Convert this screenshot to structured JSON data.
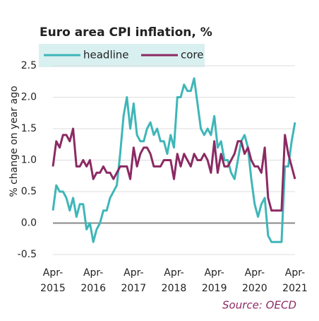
{
  "chart_data": {
    "type": "line",
    "title": "Euro area CPI inflation, %",
    "y_label": "% change on year ago",
    "source": "Source:  OECD",
    "categories": [
      "Apr-2015",
      null,
      null,
      null,
      null,
      null,
      null,
      null,
      null,
      null,
      null,
      null,
      "Apr-2016",
      null,
      null,
      null,
      null,
      null,
      null,
      null,
      null,
      null,
      null,
      null,
      "Apr-2017",
      null,
      null,
      null,
      null,
      null,
      null,
      null,
      null,
      null,
      null,
      null,
      "Apr-2018",
      null,
      null,
      null,
      null,
      null,
      null,
      null,
      null,
      null,
      null,
      null,
      "Apr-2019",
      null,
      null,
      null,
      null,
      null,
      null,
      null,
      null,
      null,
      null,
      null,
      "Apr-2020",
      null,
      null,
      null,
      null,
      null,
      null,
      null,
      null,
      null,
      null,
      null,
      "Apr-2021"
    ],
    "series": [
      {
        "name": "headline",
        "color": "#3fb6b8",
        "values": [
          0.2,
          0.6,
          0.5,
          0.5,
          0.4,
          0.2,
          0.4,
          0.1,
          0.3,
          0.3,
          -0.1,
          0.0,
          -0.3,
          -0.1,
          0.0,
          0.2,
          0.2,
          0.4,
          0.5,
          0.6,
          1.1,
          1.7,
          2.0,
          1.5,
          1.9,
          1.4,
          1.3,
          1.3,
          1.5,
          1.6,
          1.4,
          1.5,
          1.3,
          1.3,
          1.1,
          1.4,
          1.2,
          2.0,
          2.0,
          2.2,
          2.1,
          2.1,
          2.3,
          1.9,
          1.5,
          1.4,
          1.5,
          1.4,
          1.7,
          1.2,
          1.3,
          1.0,
          1.0,
          0.8,
          0.7,
          1.0,
          1.3,
          1.4,
          1.2,
          0.7,
          0.3,
          0.1,
          0.3,
          0.4,
          -0.2,
          -0.3,
          -0.3,
          -0.3,
          -0.3,
          0.9,
          0.9,
          1.3,
          1.6
        ]
      },
      {
        "name": "core",
        "color": "#8b2a63",
        "values": [
          0.9,
          1.3,
          1.2,
          1.4,
          1.4,
          1.3,
          1.5,
          0.9,
          0.9,
          1.0,
          0.9,
          1.0,
          0.7,
          0.8,
          0.8,
          0.9,
          0.8,
          0.8,
          0.7,
          0.8,
          0.9,
          0.9,
          0.9,
          0.7,
          1.2,
          0.9,
          1.1,
          1.2,
          1.2,
          1.1,
          0.9,
          0.9,
          0.9,
          1.0,
          1.0,
          1.0,
          0.7,
          1.1,
          0.9,
          1.1,
          1.0,
          0.9,
          1.1,
          1.0,
          1.0,
          1.1,
          1.0,
          0.8,
          1.3,
          0.8,
          1.1,
          0.9,
          0.9,
          1.0,
          1.1,
          1.3,
          1.3,
          1.1,
          1.2,
          1.0,
          0.9,
          0.9,
          0.8,
          1.2,
          0.4,
          0.2,
          0.2,
          0.2,
          0.2,
          1.4,
          1.1,
          0.9,
          0.7
        ]
      }
    ],
    "ylim": [
      -0.5,
      2.5
    ],
    "yticks": [
      -0.5,
      {
        "value": 0,
        "label": "0.0"
      },
      0.5,
      {
        "value": 1,
        "label": "1.0"
      },
      1.5,
      {
        "value": 2,
        "label": "2.0"
      },
      2.5
    ],
    "grid": true
  }
}
